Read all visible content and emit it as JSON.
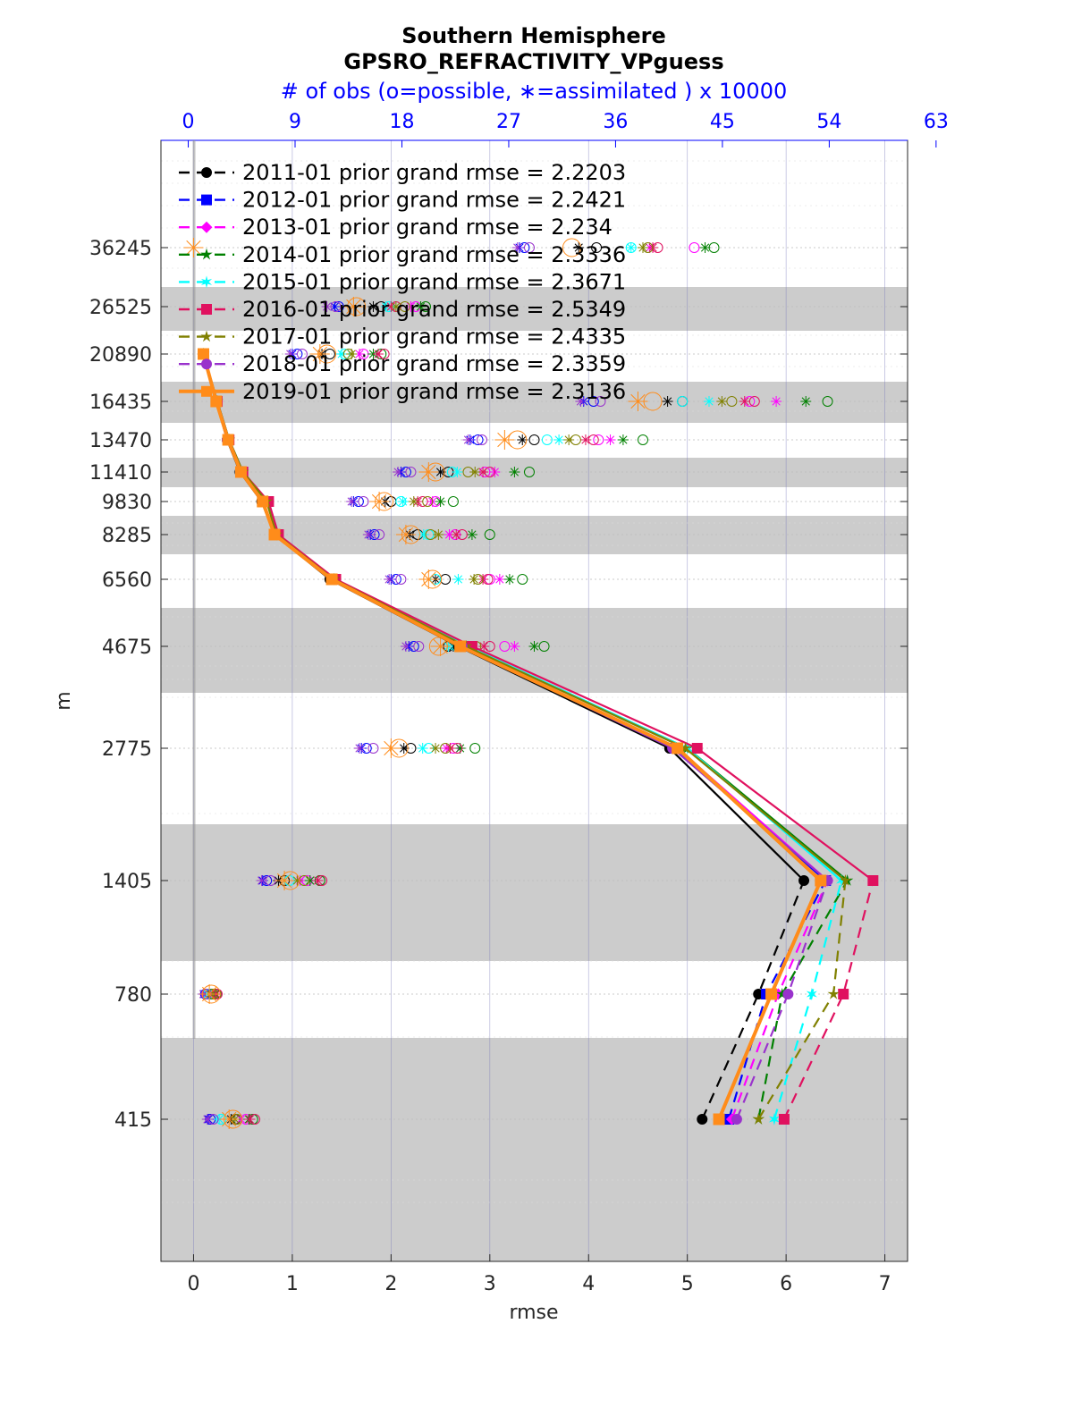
{
  "titles": {
    "line1": "Southern Hemisphere",
    "line2": "GPSRO_REFRACTIVITY_VPguess",
    "top_axis": "# of obs (o=possible, ∗=assimilated ) x 10000"
  },
  "chart_data": {
    "type": "line",
    "xlabel": "rmse",
    "ylabel": "m",
    "xlim": [
      -0.33,
      7.23
    ],
    "x_ticks": [
      "0",
      "1",
      "2",
      "3",
      "4",
      "5",
      "6",
      "7"
    ],
    "top_xlim": [
      -2.3,
      60.6
    ],
    "top_ticks": [
      "0",
      "9",
      "18",
      "27",
      "36",
      "45",
      "54",
      "63"
    ],
    "y_levels": [
      415,
      780,
      1405,
      2775,
      4675,
      6560,
      8285,
      9830,
      11410,
      13470,
      16435,
      20890,
      26525,
      36245
    ],
    "y_tick_labels": [
      "415",
      "780",
      "1405",
      "2775",
      "4675",
      "6560",
      "8285",
      "9830",
      "11410",
      "13470",
      "16435",
      "20890",
      "26525",
      "36245"
    ],
    "grid": "on",
    "shaded_bands": "alternating gray layers",
    "legend_placement": "top-left",
    "series": [
      {
        "name": "2011-01 prior grand rmse = 2.2203",
        "color": "#000000",
        "marker": "circle",
        "rmse": [
          5.15,
          5.72,
          6.18,
          4.82,
          2.68,
          1.38,
          0.82,
          0.69,
          0.47,
          0.34,
          0.23,
          0.1
        ],
        "obs_possible": [
          0.42,
          0.19,
          0.92,
          2.2,
          2.58,
          2.55,
          2.27,
          2.0,
          2.58,
          3.45,
          4.95,
          1.38,
          1.9,
          4.08
        ],
        "obs_assimilated": [
          0.38,
          0.17,
          0.86,
          2.13,
          2.63,
          2.45,
          2.19,
          1.94,
          2.5,
          3.33,
          4.8,
          1.3,
          1.82,
          3.9
        ]
      },
      {
        "name": "2012-01 prior grand rmse = 2.2421",
        "color": "#0000ff",
        "marker": "square",
        "rmse": [
          5.42,
          5.8,
          6.4,
          4.88,
          2.7,
          1.4,
          0.82,
          0.7,
          0.48,
          0.35,
          0.23,
          0.1
        ],
        "obs_possible": [
          0.17,
          0.12,
          0.74,
          1.75,
          2.23,
          2.05,
          1.83,
          1.67,
          2.15,
          2.88,
          4.05,
          1.05,
          1.47,
          3.35
        ],
        "obs_assimilated": [
          0.15,
          0.11,
          0.7,
          1.7,
          2.18,
          2.0,
          1.79,
          1.62,
          2.1,
          2.8,
          3.95,
          1.0,
          1.43,
          3.3
        ]
      },
      {
        "name": "2013-01 prior grand rmse = 2.234",
        "color": "#ff00ff",
        "marker": "diamond",
        "rmse": [
          5.45,
          5.92,
          6.42,
          4.9,
          2.72,
          1.4,
          0.83,
          0.7,
          0.48,
          0.35,
          0.24,
          0.1
        ],
        "obs_possible": [
          0.53,
          0.22,
          1.15,
          2.63,
          3.15,
          3.0,
          2.65,
          2.45,
          2.95,
          4.1,
          5.63,
          1.72,
          2.25,
          5.07
        ],
        "obs_assimilated": [
          0.48,
          0.21,
          1.08,
          2.56,
          3.25,
          3.1,
          2.59,
          2.42,
          3.05,
          4.22,
          5.9,
          1.68,
          2.2,
          4.62
        ]
      },
      {
        "name": "2014-01 prior grand rmse = 2.3336",
        "color": "#008000",
        "marker": "star",
        "rmse": [
          5.72,
          5.96,
          6.62,
          5.0,
          2.76,
          1.42,
          0.84,
          0.75,
          0.5,
          0.36,
          0.24,
          0.1
        ],
        "obs_possible": [
          0.6,
          0.23,
          1.28,
          2.85,
          3.55,
          3.33,
          3.0,
          2.63,
          3.4,
          4.55,
          6.42,
          1.9,
          2.35,
          5.27
        ],
        "obs_assimilated": [
          0.56,
          0.22,
          1.18,
          2.7,
          3.45,
          3.2,
          2.82,
          2.5,
          3.25,
          4.35,
          6.2,
          1.82,
          2.3,
          5.18
        ]
      },
      {
        "name": "2015-01 prior grand rmse = 2.3671",
        "color": "#00ffff",
        "marker": "hexagram",
        "rmse": [
          5.88,
          6.26,
          6.56,
          5.0,
          2.78,
          1.42,
          0.84,
          0.75,
          0.5,
          0.36,
          0.24,
          0.1
        ],
        "obs_possible": [
          0.28,
          0.15,
          0.97,
          2.38,
          2.67,
          2.45,
          2.38,
          2.1,
          2.62,
          3.58,
          4.95,
          1.53,
          1.98,
          4.43
        ],
        "obs_assimilated": [
          0.26,
          0.14,
          0.92,
          2.32,
          2.58,
          2.68,
          2.33,
          2.12,
          2.67,
          3.7,
          5.22,
          1.5,
          1.95,
          4.43
        ]
      },
      {
        "name": "2016-01 prior grand rmse = 2.5349",
        "color": "#e0115f",
        "marker": "square",
        "rmse": [
          5.98,
          6.58,
          6.88,
          5.1,
          2.82,
          1.44,
          0.86,
          0.76,
          0.5,
          0.36,
          0.24,
          0.1
        ],
        "obs_possible": [
          0.62,
          0.24,
          1.3,
          2.67,
          3.0,
          2.98,
          2.72,
          2.32,
          3.0,
          4.05,
          5.68,
          1.93,
          2.05,
          4.7
        ],
        "obs_assimilated": [
          0.57,
          0.23,
          1.26,
          2.6,
          2.94,
          2.93,
          2.66,
          2.27,
          2.93,
          3.97,
          5.58,
          1.87,
          2.0,
          4.65
        ]
      },
      {
        "name": "2017-01 prior grand rmse = 2.4335",
        "color": "#808000",
        "marker": "star",
        "rmse": [
          5.72,
          6.48,
          6.6,
          4.98,
          2.76,
          1.42,
          0.84,
          0.74,
          0.5,
          0.36,
          0.24,
          0.1
        ],
        "obs_possible": [
          0.44,
          0.2,
          1.12,
          2.55,
          2.86,
          2.88,
          2.4,
          2.37,
          2.78,
          3.87,
          5.45,
          1.57,
          2.14,
          4.6
        ],
        "obs_assimilated": [
          0.42,
          0.19,
          1.05,
          2.45,
          2.82,
          2.84,
          2.48,
          2.23,
          2.85,
          3.8,
          5.35,
          1.6,
          2.05,
          4.55
        ]
      },
      {
        "name": "2018-01 prior grand rmse = 2.3359",
        "color": "#9932cc",
        "marker": "circle",
        "rmse": [
          5.5,
          6.02,
          6.42,
          4.85,
          2.72,
          1.4,
          0.82,
          0.7,
          0.48,
          0.34,
          0.23,
          0.1
        ],
        "obs_possible": [
          0.2,
          0.13,
          0.78,
          1.82,
          2.28,
          2.1,
          1.88,
          1.72,
          2.2,
          2.92,
          4.12,
          1.1,
          1.44,
          3.4
        ],
        "obs_assimilated": [
          0.14,
          0.1,
          0.69,
          1.68,
          2.15,
          1.98,
          1.77,
          1.6,
          2.07,
          2.78,
          3.92,
          0.98,
          1.35,
          3.28
        ]
      },
      {
        "name": "2019-01 prior grand rmse = 2.3136",
        "color": "#ff8c1a",
        "marker": "square",
        "thick": true,
        "rmse": [
          5.32,
          5.85,
          6.35,
          4.9,
          2.7,
          1.4,
          0.82,
          0.7,
          0.48,
          0.35,
          0.23,
          0.1
        ],
        "obs_possible": [
          0.4,
          0.18,
          0.98,
          2.08,
          2.48,
          2.42,
          2.2,
          1.93,
          2.45,
          3.28,
          4.65,
          1.35,
          1.65,
          3.83
        ],
        "obs_assimilated": [
          0.36,
          0.16,
          0.92,
          2.0,
          2.5,
          2.38,
          2.15,
          1.88,
          2.38,
          3.15,
          4.5,
          1.28,
          1.62,
          0.0
        ]
      }
    ]
  }
}
